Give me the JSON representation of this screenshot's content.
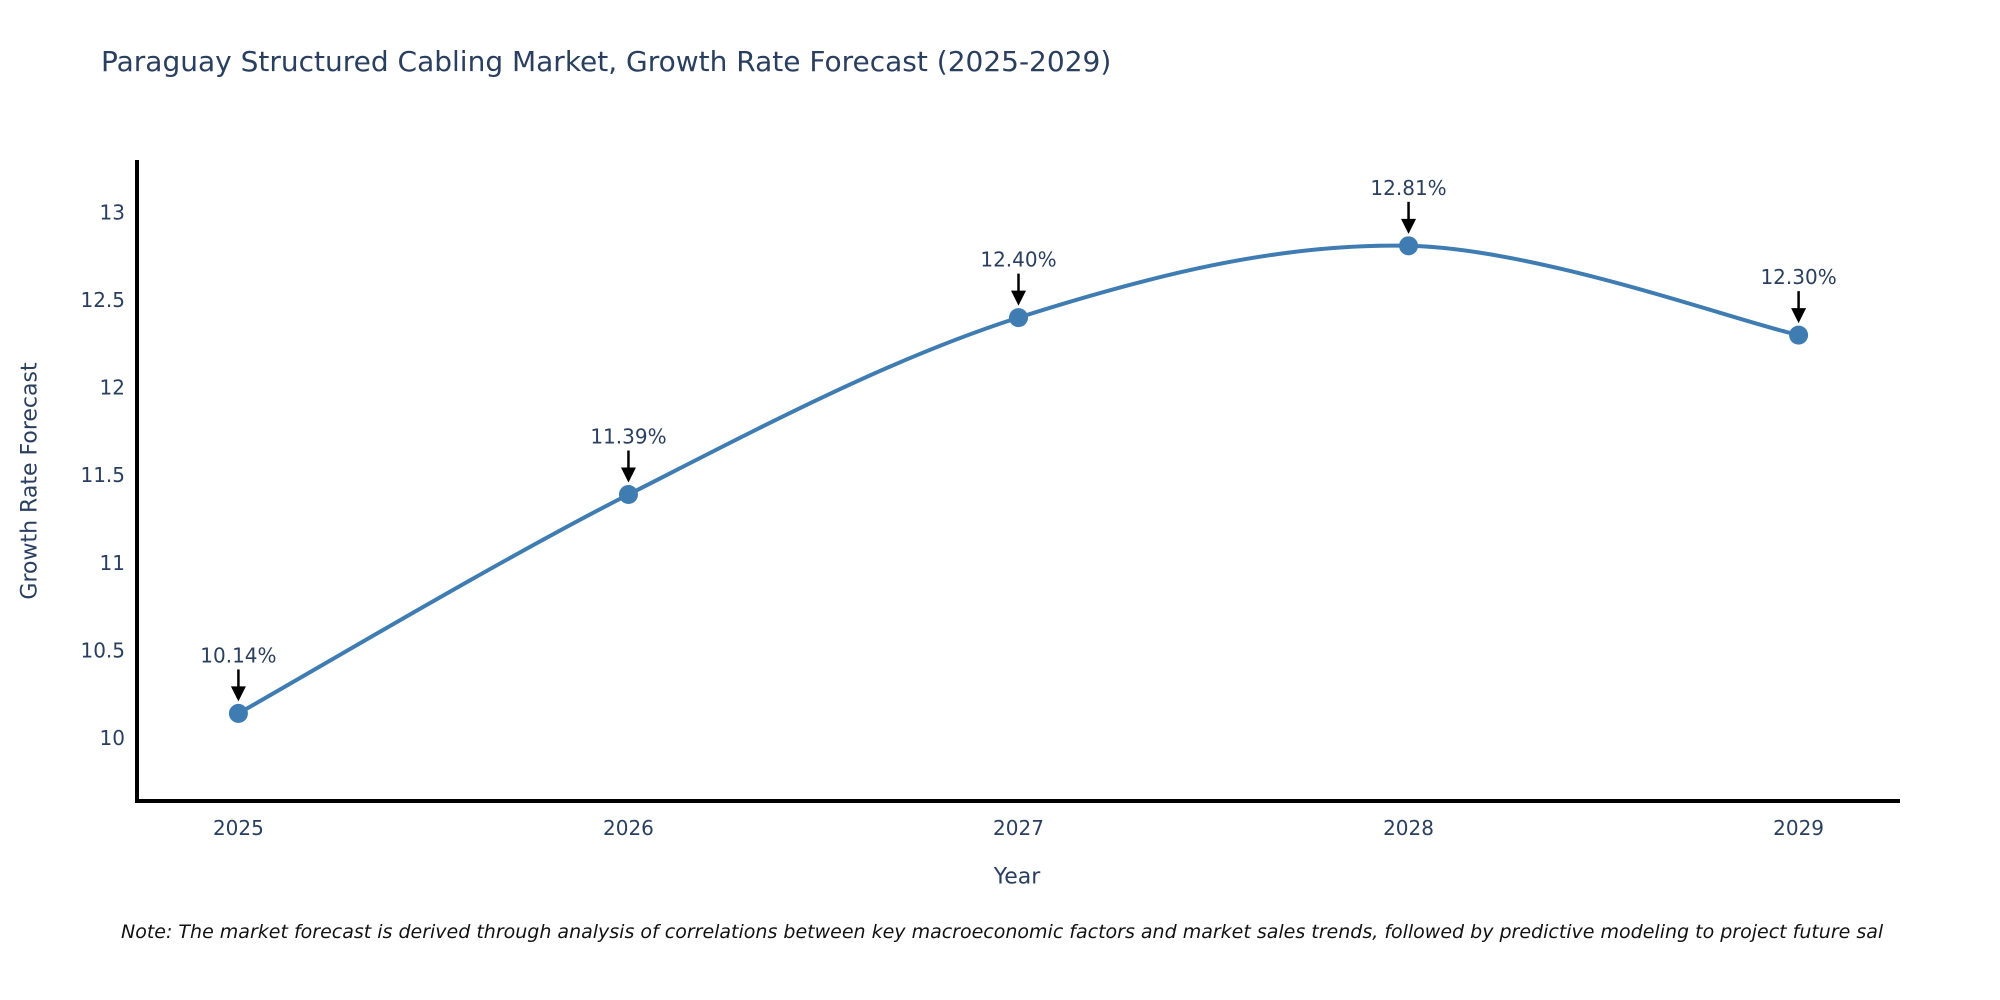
{
  "page": {
    "title": "Paraguay Structured Cabling Market, Growth Rate Forecast (2025-2029)",
    "note": "Note: The market forecast is derived through analysis of correlations between key macroeconomic factors and market sales trends, followed by predictive modeling to project future sal"
  },
  "chart_data": {
    "type": "line",
    "title": "Paraguay Structured Cabling Market, Growth Rate Forecast (2025-2029)",
    "x": [
      2025,
      2026,
      2027,
      2028,
      2029
    ],
    "series": [
      {
        "name": "Growth Rate Forecast",
        "values": [
          10.14,
          11.39,
          12.4,
          12.81,
          12.3
        ]
      }
    ],
    "point_labels": [
      "10.14%",
      "11.39%",
      "12.40%",
      "12.81%",
      "12.30%"
    ],
    "xlabel": "Year",
    "ylabel": "Growth Rate Forecast",
    "xticks": [
      "2025",
      "2026",
      "2027",
      "2028",
      "2029"
    ],
    "yticks": [
      10,
      10.5,
      11,
      11.5,
      12,
      12.5,
      13
    ],
    "xlim": [
      2024.74,
      2029.26
    ],
    "ylim": [
      9.64,
      13.3
    ],
    "grid": false,
    "legend": "none",
    "line_shape": "spline",
    "marker": "circle",
    "annotation_arrow": "down",
    "colors": {
      "line": "#3E7CB2",
      "marker": "#3E7CB2",
      "text": "#2a3f5f",
      "axis": "#000000",
      "note_text": "#111111",
      "background": "#ffffff"
    }
  }
}
